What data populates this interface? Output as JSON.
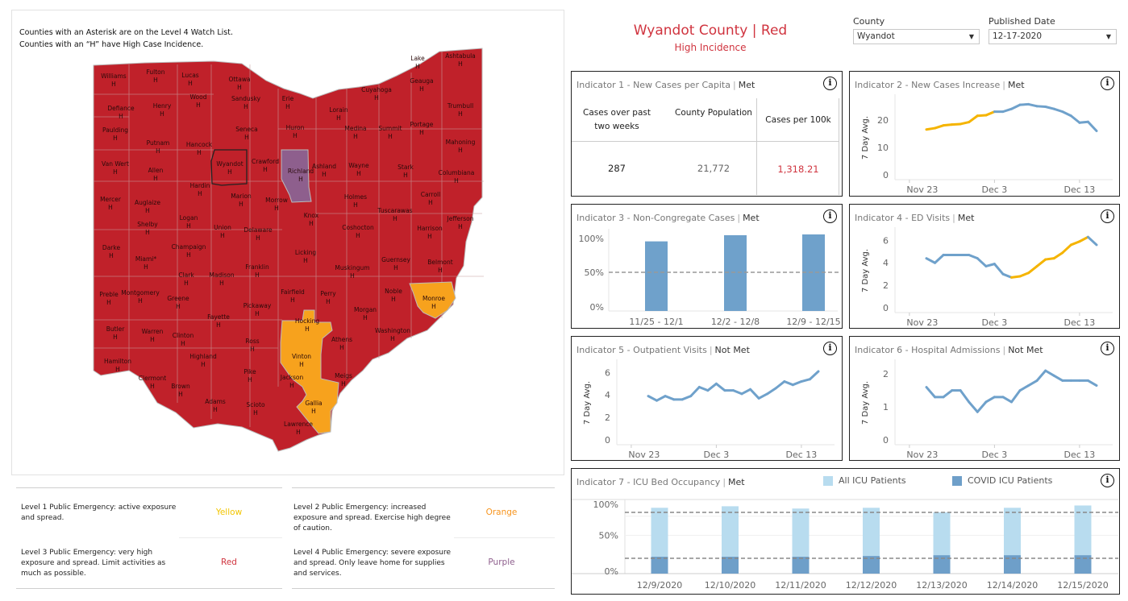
{
  "map": {
    "notes": [
      "Counties with an Asterisk are on the Level 4 Watch List.",
      "Counties with an “H” have High Case Incidence."
    ],
    "colors": {
      "red": "#c0212a",
      "orange": "#f7a21d",
      "purple": "#8e5f8d"
    },
    "selected_county": "Wyandot",
    "counties": [
      {
        "name": "Williams",
        "flag": "H",
        "level": "red"
      },
      {
        "name": "Fulton",
        "flag": "H",
        "level": "red"
      },
      {
        "name": "Lucas",
        "flag": "H",
        "level": "red"
      },
      {
        "name": "Ottawa",
        "flag": "H",
        "level": "red"
      },
      {
        "name": "Wood",
        "flag": "H",
        "level": "red"
      },
      {
        "name": "Sandusky",
        "flag": "H",
        "level": "red"
      },
      {
        "name": "Erie",
        "flag": "H",
        "level": "red"
      },
      {
        "name": "Defiance",
        "flag": "H",
        "level": "red"
      },
      {
        "name": "Henry",
        "flag": "H",
        "level": "red"
      },
      {
        "name": "Paulding",
        "flag": "H",
        "level": "red"
      },
      {
        "name": "Seneca",
        "flag": "H",
        "level": "red"
      },
      {
        "name": "Huron",
        "flag": "H",
        "level": "red"
      },
      {
        "name": "Putnam",
        "flag": "H",
        "level": "red"
      },
      {
        "name": "Hancock",
        "flag": "H",
        "level": "red"
      },
      {
        "name": "Van Wert",
        "flag": "H",
        "level": "red"
      },
      {
        "name": "Allen",
        "flag": "H",
        "level": "red"
      },
      {
        "name": "Wyandot",
        "flag": "H",
        "level": "red"
      },
      {
        "name": "Crawford",
        "flag": "H",
        "level": "red"
      },
      {
        "name": "Richland",
        "flag": "H",
        "level": "purple"
      },
      {
        "name": "Hardin",
        "flag": "H",
        "level": "red"
      },
      {
        "name": "Mercer",
        "flag": "H",
        "level": "red"
      },
      {
        "name": "Auglaize",
        "flag": "H",
        "level": "red"
      },
      {
        "name": "Marion",
        "flag": "H",
        "level": "red"
      },
      {
        "name": "Morrow",
        "flag": "H",
        "level": "red"
      },
      {
        "name": "Logan",
        "flag": "H",
        "level": "red"
      },
      {
        "name": "Union",
        "flag": "H",
        "level": "red"
      },
      {
        "name": "Knox",
        "flag": "H",
        "level": "red"
      },
      {
        "name": "Delaware",
        "flag": "H",
        "level": "red"
      },
      {
        "name": "Shelby",
        "flag": "H",
        "level": "red"
      },
      {
        "name": "Lake",
        "flag": "H",
        "level": "red"
      },
      {
        "name": "Ashtabula",
        "flag": "H",
        "level": "red"
      },
      {
        "name": "Geauga",
        "flag": "H",
        "level": "red"
      },
      {
        "name": "Cuyahoga",
        "flag": "H",
        "level": "red"
      },
      {
        "name": "Lorain",
        "flag": "H",
        "level": "red"
      },
      {
        "name": "Trumbull",
        "flag": "H",
        "level": "red"
      },
      {
        "name": "Medina",
        "flag": "H",
        "level": "red"
      },
      {
        "name": "Summit",
        "flag": "H",
        "level": "red"
      },
      {
        "name": "Portage",
        "flag": "H",
        "level": "red"
      },
      {
        "name": "Mahoning",
        "flag": "H",
        "level": "red"
      },
      {
        "name": "Ashland",
        "flag": "H",
        "level": "red"
      },
      {
        "name": "Wayne",
        "flag": "H",
        "level": "red"
      },
      {
        "name": "Stark",
        "flag": "H",
        "level": "red"
      },
      {
        "name": "Columbiana",
        "flag": "H",
        "level": "red"
      },
      {
        "name": "Holmes",
        "flag": "H",
        "level": "red"
      },
      {
        "name": "Carroll",
        "flag": "H",
        "level": "red"
      },
      {
        "name": "Tuscarawas",
        "flag": "H",
        "level": "red"
      },
      {
        "name": "Jefferson",
        "flag": "H",
        "level": "red"
      },
      {
        "name": "Coshocton",
        "flag": "H",
        "level": "red"
      },
      {
        "name": "Harrison",
        "flag": "H",
        "level": "red"
      },
      {
        "name": "Darke",
        "flag": "H",
        "level": "red"
      },
      {
        "name": "Miami*",
        "flag": "H",
        "level": "red"
      },
      {
        "name": "Champaign",
        "flag": "H",
        "level": "red"
      },
      {
        "name": "Clark",
        "flag": "H",
        "level": "red"
      },
      {
        "name": "Madison",
        "flag": "H",
        "level": "red"
      },
      {
        "name": "Franklin",
        "flag": "H",
        "level": "red"
      },
      {
        "name": "Licking",
        "flag": "H",
        "level": "red"
      },
      {
        "name": "Preble",
        "flag": "H",
        "level": "red"
      },
      {
        "name": "Montgomery",
        "flag": "H",
        "level": "red"
      },
      {
        "name": "Greene",
        "flag": "H",
        "level": "red"
      },
      {
        "name": "Fairfield",
        "flag": "H",
        "level": "red"
      },
      {
        "name": "Pickaway",
        "flag": "H",
        "level": "red"
      },
      {
        "name": "Fayette",
        "flag": "H",
        "level": "red"
      },
      {
        "name": "Hocking",
        "flag": "H",
        "level": "orange"
      },
      {
        "name": "Butler",
        "flag": "H",
        "level": "red"
      },
      {
        "name": "Warren",
        "flag": "H",
        "level": "red"
      },
      {
        "name": "Clinton",
        "flag": "H",
        "level": "red"
      },
      {
        "name": "Ross",
        "flag": "H",
        "level": "red"
      },
      {
        "name": "Highland",
        "flag": "H",
        "level": "red"
      },
      {
        "name": "Vinton",
        "flag": "H",
        "level": "orange"
      },
      {
        "name": "Hamilton",
        "flag": "H",
        "level": "red"
      },
      {
        "name": "Clermont",
        "flag": "H",
        "level": "red"
      },
      {
        "name": "Brown",
        "flag": "H",
        "level": "red"
      },
      {
        "name": "Pike",
        "flag": "H",
        "level": "red"
      },
      {
        "name": "Jackson",
        "flag": "H",
        "level": "red"
      },
      {
        "name": "Adams",
        "flag": "H",
        "level": "red"
      },
      {
        "name": "Scioto",
        "flag": "H",
        "level": "red"
      },
      {
        "name": "Gallia",
        "flag": "H",
        "level": "orange"
      },
      {
        "name": "Lawrence",
        "flag": "H",
        "level": "red"
      },
      {
        "name": "Muskingum",
        "flag": "H",
        "level": "red"
      },
      {
        "name": "Guernsey",
        "flag": "H",
        "level": "red"
      },
      {
        "name": "Belmont",
        "flag": "H",
        "level": "red"
      },
      {
        "name": "Perry",
        "flag": "H",
        "level": "red"
      },
      {
        "name": "Noble",
        "flag": "H",
        "level": "red"
      },
      {
        "name": "Monroe",
        "flag": "H",
        "level": "orange"
      },
      {
        "name": "Morgan",
        "flag": "H",
        "level": "red"
      },
      {
        "name": "Washington",
        "flag": "H",
        "level": "red"
      },
      {
        "name": "Athens",
        "flag": "H",
        "level": "red"
      },
      {
        "name": "Meigs",
        "flag": "H",
        "level": "red"
      }
    ]
  },
  "levels": [
    {
      "text": "Level 1 Public Emergency: active exposure and spread.",
      "name": "Yellow",
      "color": "#f2c500"
    },
    {
      "text": "Level 2 Public Emergency: increased exposure and spread. Exercise high degree of caution.",
      "name": "Orange",
      "color": "#f7941d"
    },
    {
      "text": "Level 3 Public Emergency: very high exposure and spread. Limit activities as much as possible.",
      "name": "Red",
      "color": "#d0343f"
    },
    {
      "text": "Level 4 Public Emergency: severe exposure and spread. Only leave home for supplies and services.",
      "name": "Purple",
      "color": "#8e5f8d"
    }
  ],
  "header": {
    "title": "Wyandot County | Red",
    "subtitle": "High Incidence",
    "accent": "#d0343f"
  },
  "filters": {
    "county_label": "County",
    "county_value": "Wyandot",
    "date_label": "Published Date",
    "date_value": "12-17-2020"
  },
  "indicator1": {
    "title": "Indicator 1 - New Cases per Capita",
    "status": "Met",
    "headers": [
      "Cases over past two weeks",
      "County Population",
      "Cases per 100k"
    ],
    "values": [
      "287",
      "21,772",
      "1,318.21"
    ]
  },
  "chart_data": [
    {
      "id": "indicator2",
      "type": "line",
      "title": "Indicator 2 - New Cases Increase",
      "status": "Met",
      "ylabel": "7 Day Avg.",
      "x": [
        "Nov 25",
        "Nov 26",
        "Nov 27",
        "Nov 28",
        "Nov 29",
        "Nov 30",
        "Dec 1",
        "Dec 2",
        "Dec 3",
        "Dec 4",
        "Dec 5",
        "Dec 6",
        "Dec 7",
        "Dec 8",
        "Dec 9",
        "Dec 10",
        "Dec 11",
        "Dec 12",
        "Dec 13",
        "Dec 14",
        "Dec 15"
      ],
      "xticks": [
        "Nov 23",
        "Dec 3",
        "Dec 13"
      ],
      "yticks": [
        0,
        10,
        20
      ],
      "ylim": [
        0,
        27
      ],
      "values": [
        16.5,
        17,
        18,
        18.3,
        18.5,
        19.2,
        21.5,
        21.7,
        23,
        23,
        24,
        25.5,
        25.7,
        25,
        24.8,
        24,
        23,
        21.5,
        19,
        19.3,
        16
      ],
      "line_color": "#6fa1cb",
      "highlight_color": "#f5b400",
      "highlight_range": [
        "Nov 25",
        "Dec 3"
      ]
    },
    {
      "id": "indicator3",
      "type": "bar",
      "title": "Indicator 3 - Non-Congregate Cases",
      "status": "Met",
      "categories": [
        "11/25 - 12/1",
        "12/2 - 12/8",
        "12/9 - 12/15"
      ],
      "values": [
        90,
        98,
        99
      ],
      "yticks": [
        "0%",
        "50%",
        "100%"
      ],
      "ylim": [
        0,
        100
      ],
      "reference_line": 50,
      "bar_color": "#6fa1cb"
    },
    {
      "id": "indicator4",
      "type": "line",
      "title": "Indicator 4 - ED Visits",
      "status": "Met",
      "ylabel": "7 Day Avg.",
      "x": [
        "Nov 25",
        "Nov 26",
        "Nov 27",
        "Nov 28",
        "Nov 29",
        "Nov 30",
        "Dec 1",
        "Dec 2",
        "Dec 3",
        "Dec 4",
        "Dec 5",
        "Dec 6",
        "Dec 7",
        "Dec 8",
        "Dec 9",
        "Dec 10",
        "Dec 11",
        "Dec 12",
        "Dec 13",
        "Dec 14",
        "Dec 15"
      ],
      "xticks": [
        "Nov 23",
        "Dec 3",
        "Dec 13"
      ],
      "yticks": [
        0,
        2,
        4,
        6
      ],
      "ylim": [
        0,
        6.6
      ],
      "values": [
        4.4,
        4.0,
        4.7,
        4.7,
        4.7,
        4.7,
        4.4,
        3.7,
        3.9,
        3.0,
        2.7,
        2.8,
        3.1,
        3.7,
        4.3,
        4.4,
        4.9,
        5.6,
        5.9,
        6.3,
        5.6
      ],
      "line_color": "#6fa1cb",
      "highlight_color": "#f5b400",
      "highlight_range": [
        "Dec 5",
        "Dec 14"
      ]
    },
    {
      "id": "indicator5",
      "type": "line",
      "title": "Indicator 5 - Outpatient Visits",
      "status": "Not Met",
      "ylabel": "7 Day Avg.",
      "x": [
        "Nov 25",
        "Nov 26",
        "Nov 27",
        "Nov 28",
        "Nov 29",
        "Nov 30",
        "Dec 1",
        "Dec 2",
        "Dec 3",
        "Dec 4",
        "Dec 5",
        "Dec 6",
        "Dec 7",
        "Dec 8",
        "Dec 9",
        "Dec 10",
        "Dec 11",
        "Dec 12",
        "Dec 13",
        "Dec 14",
        "Dec 15"
      ],
      "xticks": [
        "Nov 23",
        "Dec 3",
        "Dec 13"
      ],
      "yticks": [
        0,
        2,
        4,
        6
      ],
      "ylim": [
        0,
        6.6
      ],
      "values": [
        3.9,
        3.5,
        3.9,
        3.6,
        3.6,
        3.9,
        4.7,
        4.4,
        5.0,
        4.4,
        4.4,
        4.1,
        4.5,
        3.7,
        4.1,
        4.6,
        5.2,
        4.9,
        5.2,
        5.4,
        6.1
      ],
      "line_color": "#6fa1cb"
    },
    {
      "id": "indicator6",
      "type": "line",
      "title": "Indicator 6 - Hospital Admissions",
      "status": "Not Met",
      "ylabel": "7 Day Avg.",
      "x": [
        "Nov 25",
        "Nov 26",
        "Nov 27",
        "Nov 28",
        "Nov 29",
        "Nov 30",
        "Dec 1",
        "Dec 2",
        "Dec 3",
        "Dec 4",
        "Dec 5",
        "Dec 6",
        "Dec 7",
        "Dec 8",
        "Dec 9",
        "Dec 10",
        "Dec 11",
        "Dec 12",
        "Dec 13",
        "Dec 14",
        "Dec 15"
      ],
      "xticks": [
        "Nov 23",
        "Dec 3",
        "Dec 13"
      ],
      "yticks": [
        0,
        1,
        2
      ],
      "ylim": [
        0,
        2.25
      ],
      "values": [
        1.6,
        1.3,
        1.3,
        1.5,
        1.5,
        1.15,
        0.85,
        1.15,
        1.3,
        1.3,
        1.15,
        1.5,
        1.65,
        1.8,
        2.1,
        1.95,
        1.8,
        1.8,
        1.8,
        1.8,
        1.65
      ],
      "line_color": "#6fa1cb"
    },
    {
      "id": "indicator7",
      "type": "bar",
      "title": "Indicator 7 - ICU Bed Occupancy",
      "status": "Met",
      "categories": [
        "12/9/2020",
        "12/10/2020",
        "12/11/2020",
        "12/12/2020",
        "12/13/2020",
        "12/14/2020",
        "12/15/2020"
      ],
      "series": [
        {
          "name": "All ICU Patients",
          "color": "#b8dcef",
          "values": [
            86,
            88,
            85,
            86,
            80,
            86,
            89
          ]
        },
        {
          "name": "COVID ICU Patients",
          "color": "#6e9fc9",
          "values": [
            22,
            22,
            22,
            23,
            24,
            24,
            24
          ]
        }
      ],
      "yticks": [
        "0%",
        "50%",
        "100%"
      ],
      "ylim": [
        0,
        100
      ],
      "reference_lines": [
        80,
        20
      ],
      "legend": "top"
    }
  ]
}
